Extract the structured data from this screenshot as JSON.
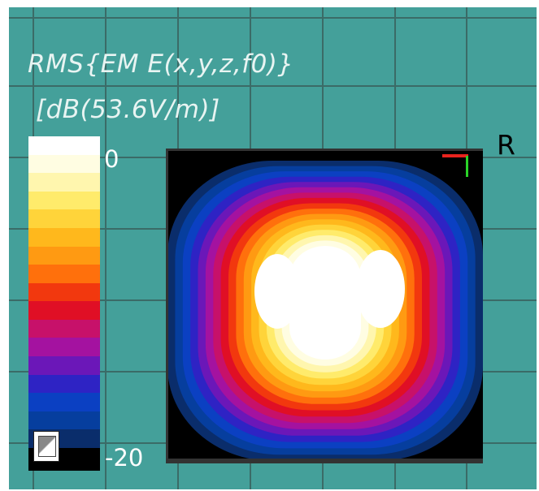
{
  "title": {
    "line1": "RMS{EM E(x,y,z,f0)}",
    "line2": "[dB(53.6V/m)]"
  },
  "colorbar": {
    "max_label": "0",
    "min_label": "-20",
    "colors": [
      "#ffffff",
      "#fffde2",
      "#fff6ae",
      "#ffeb6b",
      "#ffd43a",
      "#ffb81c",
      "#ff9a12",
      "#ff700c",
      "#f2380e",
      "#e00f25",
      "#c7116a",
      "#a412a0",
      "#6b17b8",
      "#2e23c4",
      "#0b40c2",
      "#063e9e",
      "#0a2d6b"
    ]
  },
  "heatmap": {
    "unit": "dB",
    "range": [
      -20,
      0
    ]
  },
  "marker": {
    "label": "R"
  },
  "icons": {
    "corner_button": "viewport-toggle-icon"
  }
}
